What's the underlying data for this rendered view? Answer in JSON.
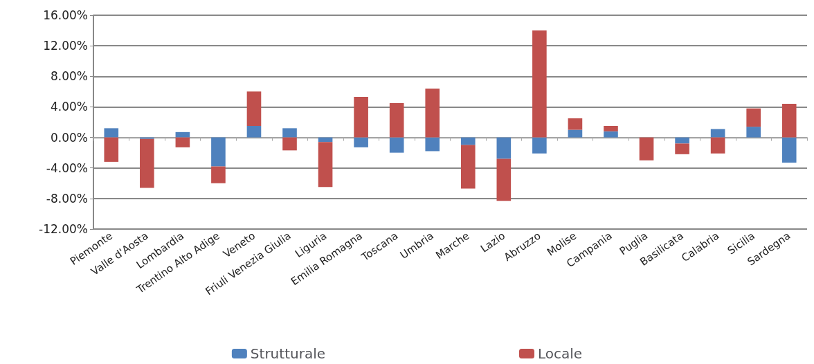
{
  "chart_data": {
    "type": "bar",
    "stacked": true,
    "categories": [
      "Piemonte",
      "Valle d'Aosta",
      "Lombardia",
      "Trentino Alto Adige",
      "Veneto",
      "Friuli Venezia Giulia",
      "Liguria",
      "Emilia Romagna",
      "Toscana",
      "Umbria",
      "Marche",
      "Lazio",
      "Abruzzo",
      "Molise",
      "Campania",
      "Puglia",
      "Basilicata",
      "Calabria",
      "Sicilia",
      "Sardegna"
    ],
    "series": [
      {
        "name": "Strutturale",
        "color": "#4f81bd",
        "values": [
          1.2,
          -0.2,
          0.7,
          -3.8,
          1.5,
          1.2,
          -0.6,
          -1.3,
          -2.0,
          -1.8,
          -1.0,
          -2.8,
          -2.1,
          1.0,
          0.8,
          0,
          -0.8,
          1.1,
          1.4,
          -3.3
        ]
      },
      {
        "name": "Locale",
        "color": "#c0504d",
        "values": [
          -3.2,
          -6.4,
          -1.3,
          -2.2,
          4.5,
          -1.7,
          -5.9,
          5.3,
          4.5,
          6.4,
          -5.7,
          -5.5,
          14.0,
          1.5,
          0.7,
          -3.0,
          -1.4,
          -2.1,
          2.4,
          4.4
        ]
      }
    ],
    "ylim": [
      -12,
      16
    ],
    "yticks": [
      {
        "value": -12,
        "label": "-12.00%"
      },
      {
        "value": -8,
        "label": "-8.00%"
      },
      {
        "value": -4,
        "label": "-4.00%"
      },
      {
        "value": 0,
        "label": "0.00%"
      },
      {
        "value": 4,
        "label": "4.00%"
      },
      {
        "value": 8,
        "label": "8.00%"
      },
      {
        "value": 12,
        "label": "12.00%"
      },
      {
        "value": 16,
        "label": "16.00%"
      }
    ],
    "grid": "y",
    "legend": "bottom"
  }
}
